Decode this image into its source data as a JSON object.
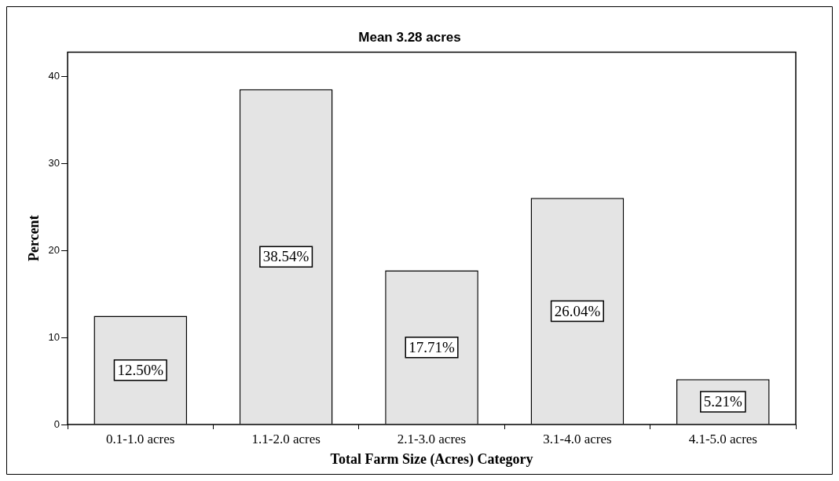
{
  "chart_data": {
    "type": "bar",
    "title": "Mean 3.28 acres",
    "xlabel": "Total Farm Size (Acres) Category",
    "ylabel": "Percent",
    "categories": [
      "0.1-1.0 acres",
      "1.1-2.0 acres",
      "2.1-3.0 acres",
      "3.1-4.0 acres",
      "4.1-5.0 acres"
    ],
    "values": [
      12.5,
      38.54,
      17.71,
      26.04,
      5.21
    ],
    "value_labels": [
      "12.50%",
      "38.54%",
      "17.71%",
      "26.04%",
      "5.21%"
    ],
    "color": "#e4e4e4",
    "ylim": [
      0,
      42.8
    ],
    "yticks": [
      0,
      10,
      20,
      30,
      40
    ],
    "grid": false,
    "legend": false
  }
}
